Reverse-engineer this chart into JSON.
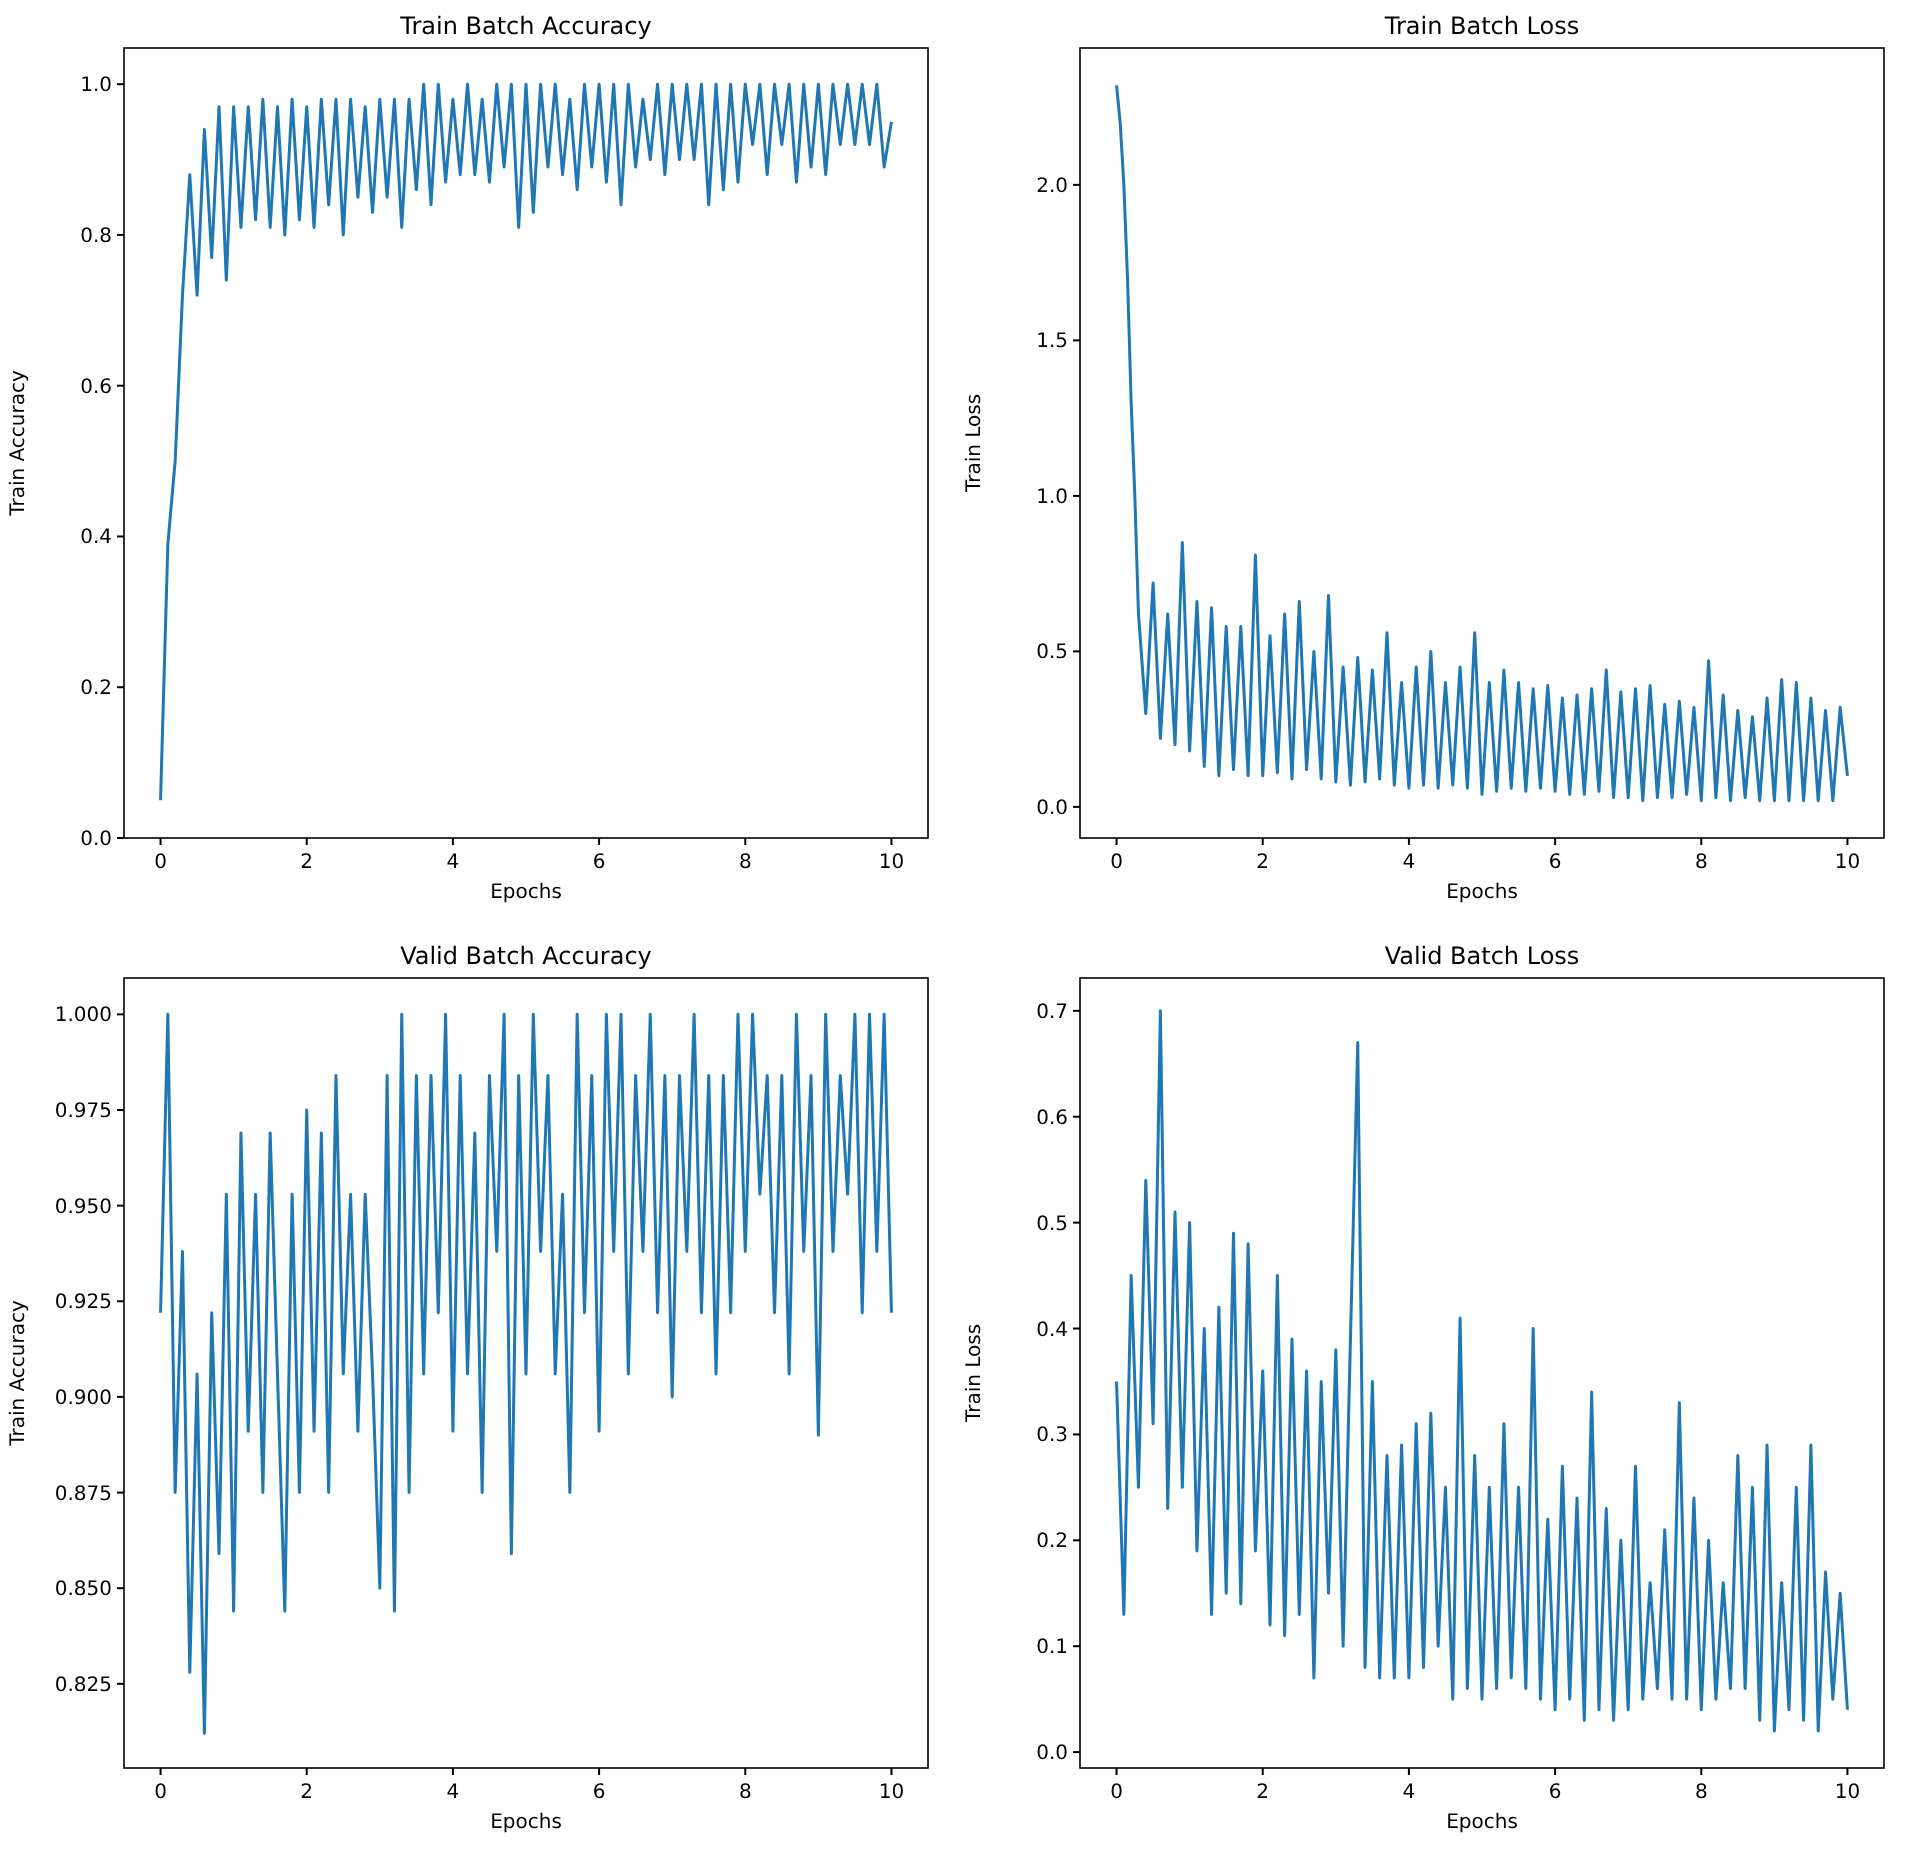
{
  "chart_data": [
    {
      "type": "line",
      "title": "Train Batch Accuracy",
      "xlabel": "Epochs",
      "ylabel": "Train Accuracy",
      "xlim": [
        -0.5,
        10.5
      ],
      "ylim": [
        0,
        1.048
      ],
      "xticks": [
        0,
        2,
        4,
        6,
        8,
        10
      ],
      "yticks": [
        {
          "value": 0,
          "label": "0.0"
        },
        {
          "value": 0.2,
          "label": "0.2"
        },
        {
          "value": 0.4,
          "label": "0.4"
        },
        {
          "value": 0.6,
          "label": "0.6"
        },
        {
          "value": 0.8,
          "label": "0.8"
        },
        {
          "value": 1,
          "label": "1.0"
        }
      ],
      "x": [
        0,
        0.1,
        0.2,
        0.3,
        0.4,
        0.5,
        0.6,
        0.7,
        0.8,
        0.9,
        1,
        1.1,
        1.2,
        1.3,
        1.4,
        1.5,
        1.6,
        1.7,
        1.8,
        1.9,
        2,
        2.1,
        2.2,
        2.3,
        2.4,
        2.5,
        2.6,
        2.7,
        2.8,
        2.9,
        3,
        3.1,
        3.2,
        3.3,
        3.4,
        3.5,
        3.6,
        3.7,
        3.8,
        3.9,
        4,
        4.1,
        4.2,
        4.3,
        4.4,
        4.5,
        4.6,
        4.7,
        4.8,
        4.9,
        5,
        5.1,
        5.2,
        5.3,
        5.4,
        5.5,
        5.6,
        5.7,
        5.8,
        5.9,
        6,
        6.1,
        6.2,
        6.3,
        6.4,
        6.5,
        6.6,
        6.7,
        6.8,
        6.9,
        7,
        7.1,
        7.2,
        7.3,
        7.4,
        7.5,
        7.6,
        7.7,
        7.8,
        7.9,
        8,
        8.1,
        8.2,
        8.3,
        8.4,
        8.5,
        8.6,
        8.7,
        8.8,
        8.9,
        9,
        9.1,
        9.2,
        9.3,
        9.4,
        9.5,
        9.6,
        9.7,
        9.8,
        9.9,
        10
      ],
      "series": [
        {
          "color": "#1f77b4",
          "values": [
            0.05,
            0.39,
            0.5,
            0.72,
            0.88,
            0.72,
            0.94,
            0.77,
            0.97,
            0.74,
            0.97,
            0.81,
            0.97,
            0.82,
            0.98,
            0.81,
            0.97,
            0.8,
            0.98,
            0.82,
            0.97,
            0.81,
            0.98,
            0.84,
            0.98,
            0.8,
            0.98,
            0.85,
            0.97,
            0.83,
            0.98,
            0.85,
            0.98,
            0.81,
            0.98,
            0.86,
            1.0,
            0.84,
            1.0,
            0.87,
            0.98,
            0.88,
            1.0,
            0.88,
            0.98,
            0.87,
            1.0,
            0.89,
            1.0,
            0.81,
            1.0,
            0.83,
            1.0,
            0.89,
            1.0,
            0.88,
            0.98,
            0.86,
            1.0,
            0.89,
            1.0,
            0.87,
            1.0,
            0.84,
            1.0,
            0.89,
            0.98,
            0.9,
            1.0,
            0.88,
            1.0,
            0.9,
            1.0,
            0.9,
            1.0,
            0.84,
            1.0,
            0.86,
            1.0,
            0.87,
            1.0,
            0.92,
            1.0,
            0.88,
            1.0,
            0.92,
            1.0,
            0.87,
            1.0,
            0.89,
            1.0,
            0.88,
            1.0,
            0.92,
            1.0,
            0.92,
            1.0,
            0.92,
            1.0,
            0.89,
            0.95
          ]
        }
      ]
    },
    {
      "type": "line",
      "title": "Train Batch Loss",
      "xlabel": "Epochs",
      "ylabel": "Train Loss",
      "xlim": [
        -0.5,
        10.5
      ],
      "ylim": [
        -0.1,
        2.44
      ],
      "xticks": [
        0,
        2,
        4,
        6,
        8,
        10
      ],
      "yticks": [
        {
          "value": 0,
          "label": "0.0"
        },
        {
          "value": 0.5,
          "label": "0.5"
        },
        {
          "value": 1,
          "label": "1.0"
        },
        {
          "value": 1.5,
          "label": "1.5"
        },
        {
          "value": 2,
          "label": "2.0"
        }
      ],
      "x": [
        0,
        0.05,
        0.1,
        0.15,
        0.2,
        0.25,
        0.3,
        0.4,
        0.5,
        0.6,
        0.7,
        0.8,
        0.9,
        1,
        1.1,
        1.2,
        1.3,
        1.4,
        1.5,
        1.6,
        1.7,
        1.8,
        1.9,
        2,
        2.1,
        2.2,
        2.3,
        2.4,
        2.5,
        2.6,
        2.7,
        2.8,
        2.9,
        3,
        3.1,
        3.2,
        3.3,
        3.4,
        3.5,
        3.6,
        3.7,
        3.8,
        3.9,
        4,
        4.1,
        4.2,
        4.3,
        4.4,
        4.5,
        4.6,
        4.7,
        4.8,
        4.9,
        5,
        5.1,
        5.2,
        5.3,
        5.4,
        5.5,
        5.6,
        5.7,
        5.8,
        5.9,
        6,
        6.1,
        6.2,
        6.3,
        6.4,
        6.5,
        6.6,
        6.7,
        6.8,
        6.9,
        7,
        7.1,
        7.2,
        7.3,
        7.4,
        7.5,
        7.6,
        7.7,
        7.8,
        7.9,
        8,
        8.1,
        8.2,
        8.3,
        8.4,
        8.5,
        8.6,
        8.7,
        8.8,
        8.9,
        9,
        9.1,
        9.2,
        9.3,
        9.4,
        9.5,
        9.6,
        9.7,
        9.8,
        9.9,
        10
      ],
      "series": [
        {
          "color": "#1f77b4",
          "values": [
            2.32,
            2.2,
            2.0,
            1.7,
            1.3,
            1.0,
            0.62,
            0.3,
            0.72,
            0.22,
            0.62,
            0.2,
            0.85,
            0.18,
            0.66,
            0.13,
            0.64,
            0.1,
            0.58,
            0.12,
            0.58,
            0.1,
            0.81,
            0.1,
            0.55,
            0.11,
            0.62,
            0.09,
            0.66,
            0.12,
            0.5,
            0.09,
            0.68,
            0.08,
            0.45,
            0.07,
            0.48,
            0.08,
            0.44,
            0.09,
            0.56,
            0.07,
            0.4,
            0.06,
            0.45,
            0.07,
            0.5,
            0.06,
            0.4,
            0.07,
            0.45,
            0.06,
            0.56,
            0.04,
            0.4,
            0.05,
            0.44,
            0.06,
            0.4,
            0.05,
            0.38,
            0.06,
            0.39,
            0.05,
            0.35,
            0.04,
            0.36,
            0.04,
            0.38,
            0.05,
            0.44,
            0.03,
            0.37,
            0.03,
            0.38,
            0.02,
            0.39,
            0.03,
            0.33,
            0.03,
            0.34,
            0.04,
            0.32,
            0.02,
            0.47,
            0.03,
            0.36,
            0.02,
            0.31,
            0.03,
            0.29,
            0.02,
            0.35,
            0.02,
            0.41,
            0.02,
            0.4,
            0.02,
            0.35,
            0.02,
            0.31,
            0.02,
            0.32,
            0.1
          ]
        }
      ]
    },
    {
      "type": "line",
      "title": "Valid Batch Accuracy",
      "xlabel": "Epochs",
      "ylabel": "Train Accuracy",
      "xlim": [
        -0.5,
        10.5
      ],
      "ylim": [
        0.803,
        1.0095
      ],
      "xticks": [
        0,
        2,
        4,
        6,
        8,
        10
      ],
      "yticks": [
        {
          "value": 0.825,
          "label": "0.825"
        },
        {
          "value": 0.85,
          "label": "0.850"
        },
        {
          "value": 0.875,
          "label": "0.875"
        },
        {
          "value": 0.9,
          "label": "0.900"
        },
        {
          "value": 0.925,
          "label": "0.925"
        },
        {
          "value": 0.95,
          "label": "0.950"
        },
        {
          "value": 0.975,
          "label": "0.975"
        },
        {
          "value": 1,
          "label": "1.000"
        }
      ],
      "x": [
        0,
        0.1,
        0.2,
        0.3,
        0.4,
        0.5,
        0.6,
        0.7,
        0.8,
        0.9,
        1,
        1.1,
        1.2,
        1.3,
        1.4,
        1.5,
        1.6,
        1.7,
        1.8,
        1.9,
        2,
        2.1,
        2.2,
        2.3,
        2.4,
        2.5,
        2.6,
        2.7,
        2.8,
        2.9,
        3,
        3.1,
        3.2,
        3.3,
        3.4,
        3.5,
        3.6,
        3.7,
        3.8,
        3.9,
        4,
        4.1,
        4.2,
        4.3,
        4.4,
        4.5,
        4.6,
        4.7,
        4.8,
        4.9,
        5,
        5.1,
        5.2,
        5.3,
        5.4,
        5.5,
        5.6,
        5.7,
        5.8,
        5.9,
        6,
        6.1,
        6.2,
        6.3,
        6.4,
        6.5,
        6.6,
        6.7,
        6.8,
        6.9,
        7,
        7.1,
        7.2,
        7.3,
        7.4,
        7.5,
        7.6,
        7.7,
        7.8,
        7.9,
        8,
        8.1,
        8.2,
        8.3,
        8.4,
        8.5,
        8.6,
        8.7,
        8.8,
        8.9,
        9,
        9.1,
        9.2,
        9.3,
        9.4,
        9.5,
        9.6,
        9.7,
        9.8,
        9.9,
        10
      ],
      "series": [
        {
          "color": "#1f77b4",
          "values": [
            0.922,
            1.0,
            0.875,
            0.938,
            0.828,
            0.906,
            0.812,
            0.922,
            0.859,
            0.953,
            0.844,
            0.969,
            0.891,
            0.953,
            0.875,
            0.969,
            0.906,
            0.844,
            0.953,
            0.875,
            0.975,
            0.891,
            0.969,
            0.875,
            0.984,
            0.906,
            0.953,
            0.891,
            0.953,
            0.906,
            0.85,
            0.984,
            0.844,
            1.0,
            0.875,
            0.984,
            0.906,
            0.984,
            0.922,
            1.0,
            0.891,
            0.984,
            0.906,
            0.969,
            0.875,
            0.984,
            0.938,
            1.0,
            0.859,
            0.984,
            0.906,
            1.0,
            0.938,
            0.984,
            0.906,
            0.953,
            0.875,
            1.0,
            0.922,
            0.984,
            0.891,
            1.0,
            0.938,
            1.0,
            0.906,
            0.984,
            0.938,
            1.0,
            0.922,
            0.984,
            0.9,
            0.984,
            0.938,
            1.0,
            0.922,
            0.984,
            0.906,
            0.984,
            0.922,
            1.0,
            0.938,
            1.0,
            0.953,
            0.984,
            0.922,
            0.984,
            0.906,
            1.0,
            0.938,
            0.984,
            0.89,
            1.0,
            0.938,
            0.984,
            0.953,
            1.0,
            0.922,
            1.0,
            0.938,
            1.0,
            0.922
          ]
        }
      ]
    },
    {
      "type": "line",
      "title": "Valid Batch Loss",
      "xlabel": "Epochs",
      "ylabel": "Train Loss",
      "xlim": [
        -0.5,
        10.5
      ],
      "ylim": [
        -0.015,
        0.731
      ],
      "xticks": [
        0,
        2,
        4,
        6,
        8,
        10
      ],
      "yticks": [
        {
          "value": 0,
          "label": "0.0"
        },
        {
          "value": 0.1,
          "label": "0.1"
        },
        {
          "value": 0.2,
          "label": "0.2"
        },
        {
          "value": 0.3,
          "label": "0.3"
        },
        {
          "value": 0.4,
          "label": "0.4"
        },
        {
          "value": 0.5,
          "label": "0.5"
        },
        {
          "value": 0.6,
          "label": "0.6"
        },
        {
          "value": 0.7,
          "label": "0.7"
        }
      ],
      "x": [
        0,
        0.1,
        0.2,
        0.3,
        0.4,
        0.5,
        0.6,
        0.7,
        0.8,
        0.9,
        1,
        1.1,
        1.2,
        1.3,
        1.4,
        1.5,
        1.6,
        1.7,
        1.8,
        1.9,
        2,
        2.1,
        2.2,
        2.3,
        2.4,
        2.5,
        2.6,
        2.7,
        2.8,
        2.9,
        3,
        3.1,
        3.2,
        3.3,
        3.4,
        3.5,
        3.6,
        3.7,
        3.8,
        3.9,
        4,
        4.1,
        4.2,
        4.3,
        4.4,
        4.5,
        4.6,
        4.7,
        4.8,
        4.9,
        5,
        5.1,
        5.2,
        5.3,
        5.4,
        5.5,
        5.6,
        5.7,
        5.8,
        5.9,
        6,
        6.1,
        6.2,
        6.3,
        6.4,
        6.5,
        6.6,
        6.7,
        6.8,
        6.9,
        7,
        7.1,
        7.2,
        7.3,
        7.4,
        7.5,
        7.6,
        7.7,
        7.8,
        7.9,
        8,
        8.1,
        8.2,
        8.3,
        8.4,
        8.5,
        8.6,
        8.7,
        8.8,
        8.9,
        9,
        9.1,
        9.2,
        9.3,
        9.4,
        9.5,
        9.6,
        9.7,
        9.8,
        9.9,
        10
      ],
      "series": [
        {
          "color": "#1f77b4",
          "values": [
            0.35,
            0.13,
            0.45,
            0.25,
            0.54,
            0.31,
            0.7,
            0.23,
            0.51,
            0.25,
            0.5,
            0.19,
            0.4,
            0.13,
            0.42,
            0.15,
            0.49,
            0.14,
            0.48,
            0.19,
            0.36,
            0.12,
            0.45,
            0.11,
            0.39,
            0.13,
            0.36,
            0.07,
            0.35,
            0.15,
            0.38,
            0.1,
            0.39,
            0.67,
            0.08,
            0.35,
            0.07,
            0.28,
            0.07,
            0.29,
            0.07,
            0.31,
            0.08,
            0.32,
            0.1,
            0.25,
            0.05,
            0.41,
            0.06,
            0.28,
            0.05,
            0.25,
            0.06,
            0.31,
            0.07,
            0.25,
            0.06,
            0.4,
            0.05,
            0.22,
            0.04,
            0.27,
            0.05,
            0.24,
            0.03,
            0.34,
            0.04,
            0.23,
            0.03,
            0.2,
            0.04,
            0.27,
            0.05,
            0.16,
            0.06,
            0.21,
            0.05,
            0.33,
            0.05,
            0.24,
            0.04,
            0.2,
            0.05,
            0.16,
            0.06,
            0.28,
            0.06,
            0.25,
            0.03,
            0.29,
            0.02,
            0.16,
            0.04,
            0.25,
            0.03,
            0.29,
            0.02,
            0.17,
            0.05,
            0.15,
            0.04
          ]
        }
      ]
    }
  ]
}
